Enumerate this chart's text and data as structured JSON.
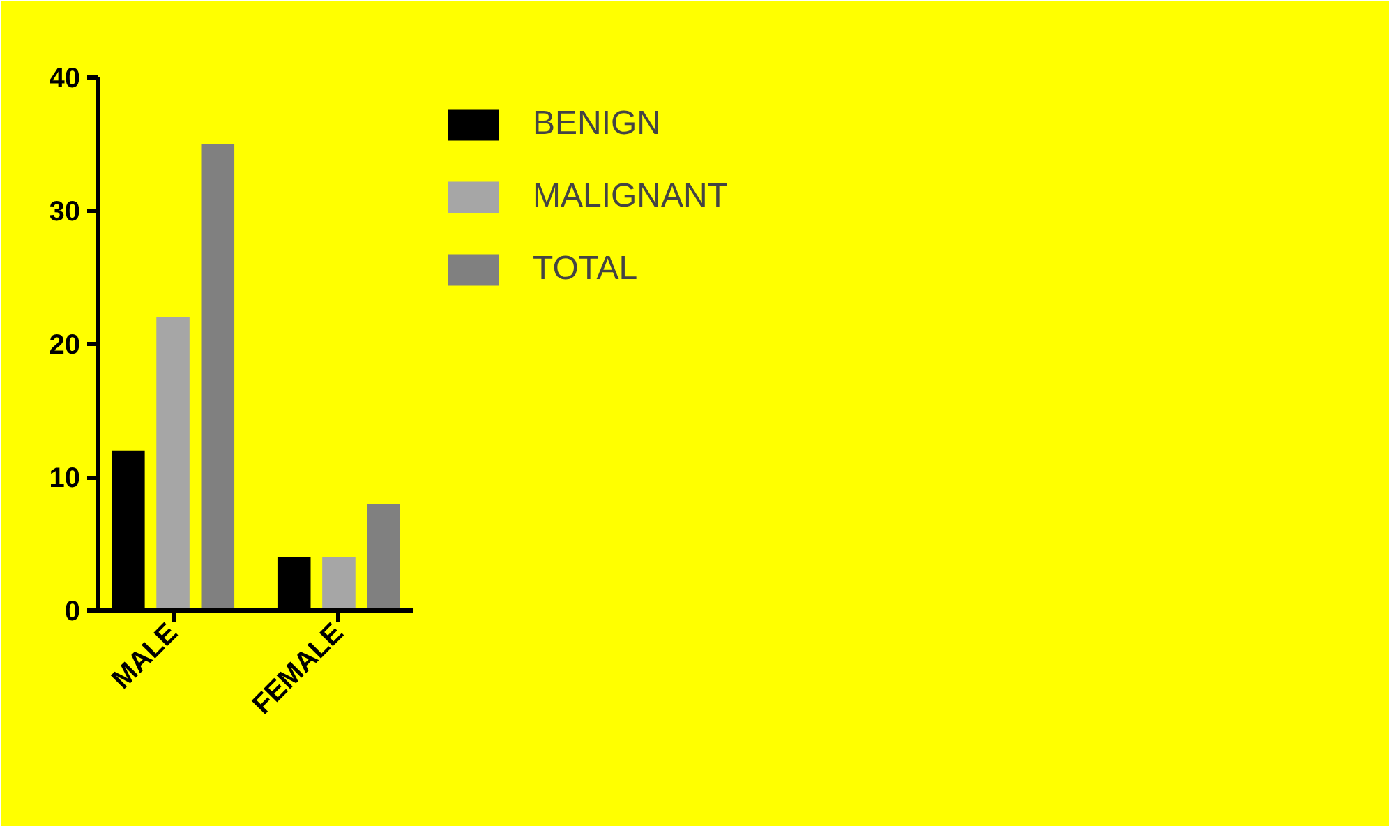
{
  "chart_data": {
    "type": "bar",
    "categories": [
      "MALE",
      "FEMALE"
    ],
    "series": [
      {
        "name": "BENIGN",
        "color": "#000000",
        "values": [
          12,
          4
        ]
      },
      {
        "name": "MALIGNANT",
        "color": "#a6a6a6",
        "values": [
          22,
          4
        ]
      },
      {
        "name": "TOTAL",
        "color": "#808080",
        "values": [
          35,
          8
        ]
      }
    ],
    "ylim": [
      0,
      40
    ],
    "yticks": [
      0,
      10,
      20,
      30,
      40
    ],
    "grid": false,
    "legend": "top right"
  }
}
